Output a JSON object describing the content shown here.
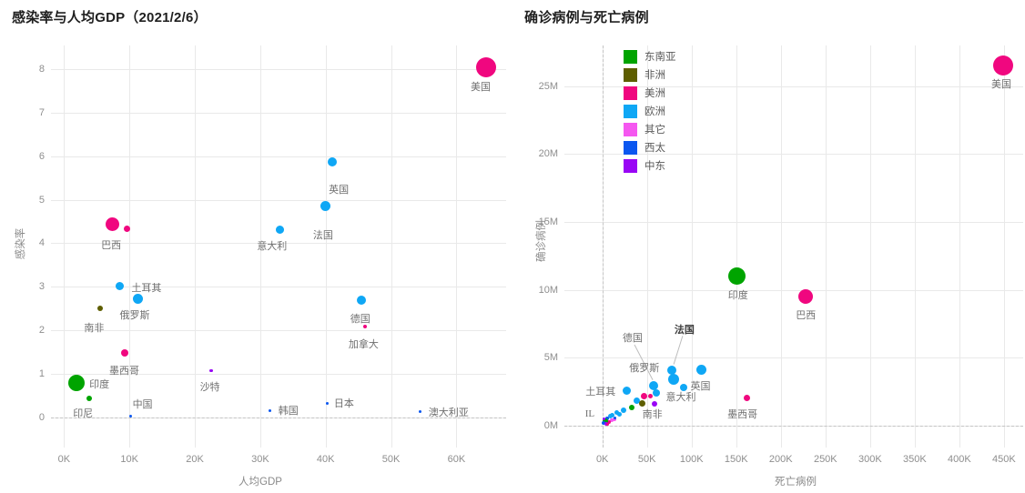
{
  "region_colors": {
    "东南亚": "#00a400",
    "非洲": "#5e5e00",
    "美洲": "#f0077f",
    "欧洲": "#0fa7f5",
    "其它": "#f557f0",
    "西太": "#0b57f0",
    "中东": "#9906f5"
  },
  "legend": {
    "items": [
      "东南亚",
      "非洲",
      "美洲",
      "欧洲",
      "其它",
      "西太",
      "中东"
    ]
  },
  "chart_data": [
    {
      "type": "scatter",
      "title": "感染率与人均GDP（2021/2/6）",
      "xlabel": "人均GDP",
      "ylabel": "感染率",
      "xlim": [
        -2,
        67.6
      ],
      "ylim": [
        -0.7,
        8.55
      ],
      "x_ticks": [
        {
          "v": 0,
          "t": "0K"
        },
        {
          "v": 10,
          "t": "10K"
        },
        {
          "v": 20,
          "t": "20K"
        },
        {
          "v": 30,
          "t": "30K"
        },
        {
          "v": 40,
          "t": "40K"
        },
        {
          "v": 50,
          "t": "50K"
        },
        {
          "v": 60,
          "t": "60K"
        }
      ],
      "y_ticks": [
        {
          "v": 0,
          "t": "0"
        },
        {
          "v": 1,
          "t": "1"
        },
        {
          "v": 2,
          "t": "2"
        },
        {
          "v": 3,
          "t": "3"
        },
        {
          "v": 4,
          "t": "4"
        },
        {
          "v": 5,
          "t": "5"
        },
        {
          "v": 6,
          "t": "6"
        },
        {
          "v": 7,
          "t": "7"
        },
        {
          "v": 8,
          "t": "8"
        }
      ],
      "zero_line_y": 0,
      "zero_line_x": null,
      "points": [
        {
          "label": "美国",
          "region": "美洲",
          "x": 64.5,
          "y": 8.05,
          "r": 11
        },
        {
          "label": "英国",
          "region": "欧洲",
          "x": 41,
          "y": 5.87,
          "r": 5
        },
        {
          "label": "法国",
          "region": "欧洲",
          "x": 40,
          "y": 4.85,
          "r": 5.5
        },
        {
          "label": "意大利",
          "region": "欧洲",
          "x": 33,
          "y": 4.32,
          "r": 4.5
        },
        {
          "label": "巴西",
          "region": "美洲",
          "x": 7.4,
          "y": 4.44,
          "r": 7.5
        },
        {
          "label": "",
          "region": "美洲",
          "x": 9.6,
          "y": 4.33,
          "r": 3.5
        },
        {
          "label": "土耳其",
          "region": "欧洲",
          "x": 8.5,
          "y": 3.02,
          "r": 4.5
        },
        {
          "label": "俄罗斯",
          "region": "欧洲",
          "x": 11.3,
          "y": 2.72,
          "r": 5.5
        },
        {
          "label": "南非",
          "region": "非洲",
          "x": 5.5,
          "y": 2.5,
          "r": 3
        },
        {
          "label": "德国",
          "region": "欧洲",
          "x": 45.5,
          "y": 2.7,
          "r": 5
        },
        {
          "label": "加拿大",
          "region": "美洲",
          "x": 46,
          "y": 2.08,
          "r": 2
        },
        {
          "label": "墨西哥",
          "region": "美洲",
          "x": 9.3,
          "y": 1.48,
          "r": 4
        },
        {
          "label": "沙特",
          "region": "中东",
          "x": 22.5,
          "y": 1.07,
          "r": 1.8
        },
        {
          "label": "印度",
          "region": "东南亚",
          "x": 1.9,
          "y": 0.79,
          "r": 9
        },
        {
          "label": "印尼",
          "region": "东南亚",
          "x": 3.9,
          "y": 0.42,
          "r": 3
        },
        {
          "label": "中国",
          "region": "西太",
          "x": 10.2,
          "y": 0.03,
          "r": 1.5
        },
        {
          "label": "韩国",
          "region": "西太",
          "x": 31.5,
          "y": 0.15,
          "r": 1.5
        },
        {
          "label": "日本",
          "region": "西太",
          "x": 40.3,
          "y": 0.31,
          "r": 1.5
        },
        {
          "label": "澳大利亚",
          "region": "西太",
          "x": 54.5,
          "y": 0.12,
          "r": 1.5
        }
      ],
      "annotations": [
        {
          "text": "美国",
          "x": 63.7,
          "y": 7.6
        },
        {
          "text": "英国",
          "x": 42,
          "y": 5.25
        },
        {
          "text": "法国",
          "x": 39.6,
          "y": 4.2
        },
        {
          "text": "意大利",
          "x": 31.8,
          "y": 3.95
        },
        {
          "text": "巴西",
          "x": 7.2,
          "y": 3.97
        },
        {
          "text": "土耳其",
          "x": 12.6,
          "y": 2.98
        },
        {
          "text": "俄罗斯",
          "x": 10.8,
          "y": 2.36
        },
        {
          "text": "南非",
          "x": 4.6,
          "y": 2.07
        },
        {
          "text": "德国",
          "x": 45.3,
          "y": 2.28
        },
        {
          "text": "加拿大",
          "x": 45.8,
          "y": 1.68
        },
        {
          "text": "墨西哥",
          "x": 9.2,
          "y": 1.08
        },
        {
          "text": "沙特",
          "x": 22.3,
          "y": 0.7
        },
        {
          "text": "印度",
          "x": 5.4,
          "y": 0.76
        },
        {
          "text": "印尼",
          "x": 2.9,
          "y": 0.1
        },
        {
          "text": "中国",
          "x": 12,
          "y": 0.3
        },
        {
          "text": "韩国",
          "x": 34.3,
          "y": 0.16
        },
        {
          "text": "日本",
          "x": 42.8,
          "y": 0.33
        },
        {
          "text": "澳大利亚",
          "x": 58.8,
          "y": 0.12
        }
      ],
      "leaders": [],
      "show_legend": false
    },
    {
      "type": "scatter",
      "title": "确诊病例与死亡病例",
      "xlabel": "死亡病例",
      "ylabel": "确诊病例",
      "xlim": [
        -42.5,
        471.5
      ],
      "ylim": [
        -1.63,
        28.0
      ],
      "x_ticks": [
        {
          "v": 0,
          "t": "0K"
        },
        {
          "v": 50,
          "t": "50K"
        },
        {
          "v": 100,
          "t": "100K"
        },
        {
          "v": 150,
          "t": "150K"
        },
        {
          "v": 200,
          "t": "200K"
        },
        {
          "v": 250,
          "t": "250K"
        },
        {
          "v": 300,
          "t": "300K"
        },
        {
          "v": 350,
          "t": "350K"
        },
        {
          "v": 400,
          "t": "400K"
        },
        {
          "v": 450,
          "t": "450K"
        }
      ],
      "y_ticks": [
        {
          "v": 0,
          "t": "0M"
        },
        {
          "v": 5,
          "t": "5M"
        },
        {
          "v": 10,
          "t": "10M"
        },
        {
          "v": 15,
          "t": "15M"
        },
        {
          "v": 20,
          "t": "20M"
        },
        {
          "v": 25,
          "t": "25M"
        }
      ],
      "zero_line_y": 0,
      "zero_line_x": 0,
      "points": [
        {
          "label": "美国",
          "region": "美洲",
          "x": 449,
          "y": 26.5,
          "r": 11
        },
        {
          "label": "印度",
          "region": "东南亚",
          "x": 151,
          "y": 11.0,
          "r": 9.5
        },
        {
          "label": "巴西",
          "region": "美洲",
          "x": 228,
          "y": 9.5,
          "r": 8
        },
        {
          "label": "法国",
          "region": "欧洲",
          "x": 78,
          "y": 4.07,
          "r": 5
        },
        {
          "label": "英国",
          "region": "欧洲",
          "x": 111,
          "y": 4.07,
          "r": 5.5
        },
        {
          "label": "俄罗斯",
          "region": "欧洲",
          "x": 80,
          "y": 3.4,
          "r": 6
        },
        {
          "label": "德国",
          "region": "欧洲",
          "x": 57.5,
          "y": 2.93,
          "r": 5
        },
        {
          "label": "意大利",
          "region": "欧洲",
          "x": 91,
          "y": 2.8,
          "r": 4
        },
        {
          "label": "土耳其",
          "region": "欧洲",
          "x": 27,
          "y": 2.53,
          "r": 4.5
        },
        {
          "label": "",
          "region": "欧洲",
          "x": 61,
          "y": 2.39,
          "r": 4
        },
        {
          "label": "",
          "region": "美洲",
          "x": 47,
          "y": 2.19,
          "r": 3.5
        },
        {
          "label": "",
          "region": "美洲",
          "x": 54,
          "y": 2.19,
          "r": 2.5
        },
        {
          "label": "",
          "region": "欧洲",
          "x": 39,
          "y": 1.79,
          "r": 3.5
        },
        {
          "label": "南非",
          "region": "非洲",
          "x": 45,
          "y": 1.59,
          "r": 3.5
        },
        {
          "label": "",
          "region": "中东",
          "x": 58,
          "y": 1.59,
          "r": 3
        },
        {
          "label": "",
          "region": "东南亚",
          "x": 33,
          "y": 1.32,
          "r": 3
        },
        {
          "label": "",
          "region": "欧洲",
          "x": 24,
          "y": 1.12,
          "r": 3
        },
        {
          "label": "",
          "region": "欧洲",
          "x": 16,
          "y": 0.98,
          "r": 2.5
        },
        {
          "label": "墨西哥",
          "region": "美洲",
          "x": 162,
          "y": 1.99,
          "r": 3.5
        },
        {
          "label": "",
          "region": "欧洲",
          "x": 19,
          "y": 0.8,
          "r": 2.5
        },
        {
          "label": "",
          "region": "欧洲",
          "x": 11.5,
          "y": 0.78,
          "r": 2.5
        },
        {
          "label": "",
          "region": "欧洲",
          "x": 8.5,
          "y": 0.65,
          "r": 2.5
        },
        {
          "label": "",
          "region": "西太",
          "x": 5.4,
          "y": 0.52,
          "r": 2
        },
        {
          "label": "",
          "region": "其它",
          "x": 10.5,
          "y": 0.38,
          "r": 2
        },
        {
          "label": "",
          "region": "其它",
          "x": 13.6,
          "y": 0.45,
          "r": 2
        },
        {
          "label": "",
          "region": "美洲",
          "x": 7.4,
          "y": 0.25,
          "r": 2
        },
        {
          "label": "",
          "region": "东南亚",
          "x": 3.4,
          "y": 0.31,
          "r": 3
        },
        {
          "label": "",
          "region": "西太",
          "x": 1.3,
          "y": 0.18,
          "r": 2
        },
        {
          "label": "",
          "region": "中东",
          "x": 4.4,
          "y": 0.11,
          "r": 2
        },
        {
          "label": "",
          "region": "中东",
          "x": 2.3,
          "y": 0.45,
          "r": 1.5
        },
        {
          "label": "",
          "region": "美洲",
          "x": 6.4,
          "y": 0.11,
          "r": 1.5
        },
        {
          "label": "",
          "region": "西太",
          "x": 14.6,
          "y": 0.58,
          "r": 1.5
        }
      ],
      "annotations": [
        {
          "text": "美国",
          "x": 447,
          "y": 25.2
        },
        {
          "text": "印度",
          "x": 152,
          "y": 9.65
        },
        {
          "text": "巴西",
          "x": 228,
          "y": 8.15
        },
        {
          "text": "法国",
          "x": 92,
          "y": 7.1,
          "bold": true
        },
        {
          "text": "德国",
          "x": 34,
          "y": 6.45
        },
        {
          "text": "俄罗斯",
          "x": 47,
          "y": 4.25
        },
        {
          "text": "英国",
          "x": 110,
          "y": 2.95
        },
        {
          "text": "意大利",
          "x": 88,
          "y": 2.1
        },
        {
          "text": "土耳其",
          "x": -2,
          "y": 2.55
        },
        {
          "text": "南非",
          "x": 56,
          "y": 0.82
        },
        {
          "text": "墨西哥",
          "x": 157,
          "y": 0.82
        },
        {
          "text": "IL",
          "x": -14,
          "y": 0.82
        }
      ],
      "leaders": [
        {
          "x1": 90,
          "y1": 6.6,
          "x2": 80,
          "y2": 4.5
        },
        {
          "x1": 36,
          "y1": 5.95,
          "x2": 56.5,
          "y2": 3.35
        }
      ],
      "show_legend": true
    }
  ]
}
